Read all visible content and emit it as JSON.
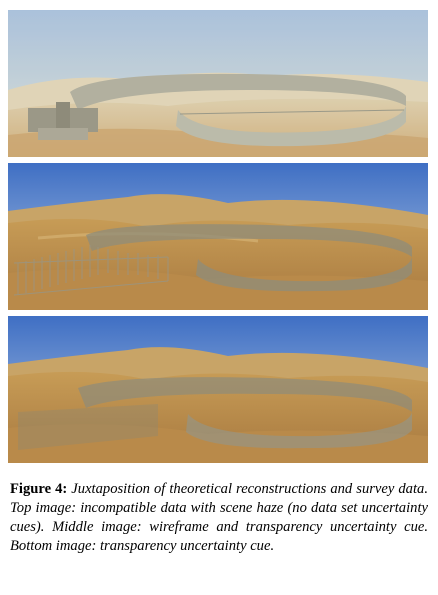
{
  "figure": {
    "label": "Figure 4:",
    "caption": "Juxtaposition of theoretical reconstructions and survey data. Top image: incompatible data with scene haze (no data set uncertainty cues). Middle image: wireframe and transparency uncertainty cue. Bottom image: transparency uncertainty cue."
  },
  "colors": {
    "sky_haze": "#b9cde0",
    "sky_blue": "#5a86cf",
    "sand": "#c8a05e",
    "wall": "#9b9a87"
  }
}
